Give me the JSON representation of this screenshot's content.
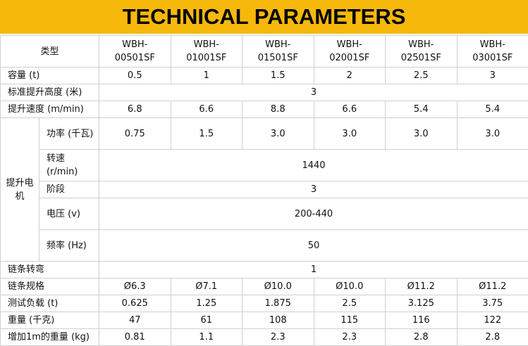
{
  "header": {
    "title": "TECHNICAL PARAMETERS"
  },
  "table": {
    "rows": [
      {
        "label": "类型",
        "values": [
          "WBH-00501SF",
          "WBH-01001SF",
          "WBH-01501SF",
          "WBH-02001SF",
          "WBH-02501SF",
          "WBH-03001SF"
        ]
      },
      {
        "label": "容量 (t)",
        "values": [
          "0.5",
          "1",
          "1.5",
          "2",
          "2.5",
          "3"
        ]
      },
      {
        "label": "标准提升高度 (米)",
        "values": [
          "3"
        ]
      },
      {
        "label": "提升速度 (m/min)",
        "values": [
          "6.8",
          "6.6",
          "8.8",
          "6.6",
          "5.4",
          "5.4"
        ]
      },
      {
        "label": "提升电机",
        "rows": [
          {
            "label": "功率 (千瓦)",
            "values": [
              "0.75",
              "1.5",
              "3.0",
              "3.0",
              "3.0",
              "3.0"
            ]
          },
          {
            "label": "转速 (r/min)",
            "values": [
              "1440"
            ]
          },
          {
            "label": "阶段",
            "values": [
              "3"
            ]
          },
          {
            "label": "电压 (v)",
            "values": [
              "200-440"
            ]
          },
          {
            "label": "频率 (Hz)",
            "values": [
              "50"
            ]
          }
        ]
      },
      {
        "label": "链条转弯",
        "values": [
          "1"
        ]
      },
      {
        "label": "链条规格",
        "values": [
          "Ø6.3",
          "Ø7.1",
          "Ø10.0",
          "Ø10.0",
          "Ø11.2",
          "Ø11.2"
        ]
      },
      {
        "label": "测试负载 (t)",
        "values": [
          "0.625",
          "1.25",
          "1.875",
          "2.5",
          "3.125",
          "3.75"
        ]
      },
      {
        "label": "重量 (千克)",
        "values": [
          "47",
          "61",
          "108",
          "115",
          "116",
          "122"
        ]
      },
      {
        "label": "增加1m的重量 (kg)",
        "values": [
          "0.81",
          "1.1",
          "2.3",
          "2.3",
          "2.8",
          "2.8"
        ]
      }
    ]
  }
}
